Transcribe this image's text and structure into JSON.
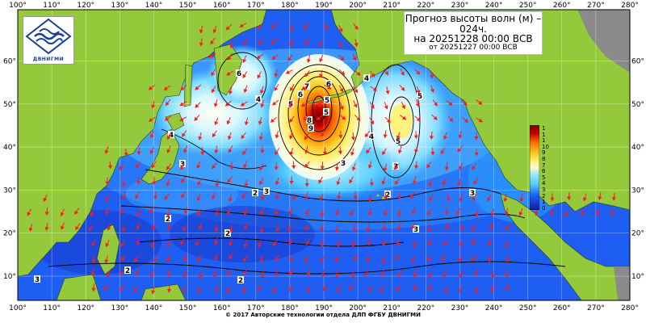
{
  "title": {
    "line1": "Прогноз высоты волн (м) –",
    "line2": "024ч.",
    "line3": "на 20251228 00:00 ВСВ",
    "line4": "от 20251227 00:00 ВСВ"
  },
  "logo": {
    "text": "ДВНИГМИ",
    "icon": "wave-logo-icon"
  },
  "copyright": "© 2017 Авторские технологии отдела ДЛП ФГБУ ДВНИГМИ",
  "axes": {
    "lon_labels": [
      "100°",
      "110°",
      "120°",
      "130°",
      "140°",
      "150°",
      "160°",
      "170°",
      "180°",
      "190°",
      "200°",
      "210°",
      "220°",
      "230°",
      "240°",
      "250°",
      "260°",
      "270°",
      "280°"
    ],
    "lat_labels": [
      "10°",
      "20°",
      "30°",
      "40°",
      "50°",
      "60°"
    ]
  },
  "legend": {
    "ticks": [
      "1",
      "1",
      "1",
      "10",
      "9",
      "8",
      "7",
      "6",
      "5",
      "4",
      "3",
      "2",
      "1",
      "0"
    ],
    "colors": [
      "#7a0000",
      "#c40000",
      "#f03c00",
      "#ff8a00",
      "#ffc21a",
      "#fff06a",
      "#fffbd1",
      "#e8fbff",
      "#9fe8ff",
      "#4fcbff",
      "#1f9eff",
      "#1c63ff",
      "#1f2fd8",
      "#161896"
    ]
  },
  "contour_labels": [
    {
      "value": "6"
    },
    {
      "value": "4"
    },
    {
      "value": "4"
    },
    {
      "value": "3"
    },
    {
      "value": "3"
    },
    {
      "value": "5"
    },
    {
      "value": "6"
    },
    {
      "value": "7"
    },
    {
      "value": "8"
    },
    {
      "value": "9"
    },
    {
      "value": "5"
    },
    {
      "value": "6"
    },
    {
      "value": "5"
    },
    {
      "value": "3"
    },
    {
      "value": "4"
    },
    {
      "value": "5"
    },
    {
      "value": "5"
    },
    {
      "value": "4"
    },
    {
      "value": "3"
    },
    {
      "value": "2"
    },
    {
      "value": "2"
    },
    {
      "value": "3"
    },
    {
      "value": "2"
    },
    {
      "value": "2"
    },
    {
      "value": "3"
    },
    {
      "value": "2"
    },
    {
      "value": "2"
    },
    {
      "value": "3"
    }
  ],
  "colors": {
    "land": "#95c93c",
    "land_gray": "#8a8a8a",
    "ocean_low": "#1f57f0",
    "arrows": "#ff1a1a",
    "contours": "#000000",
    "grid": "#ffffff"
  }
}
